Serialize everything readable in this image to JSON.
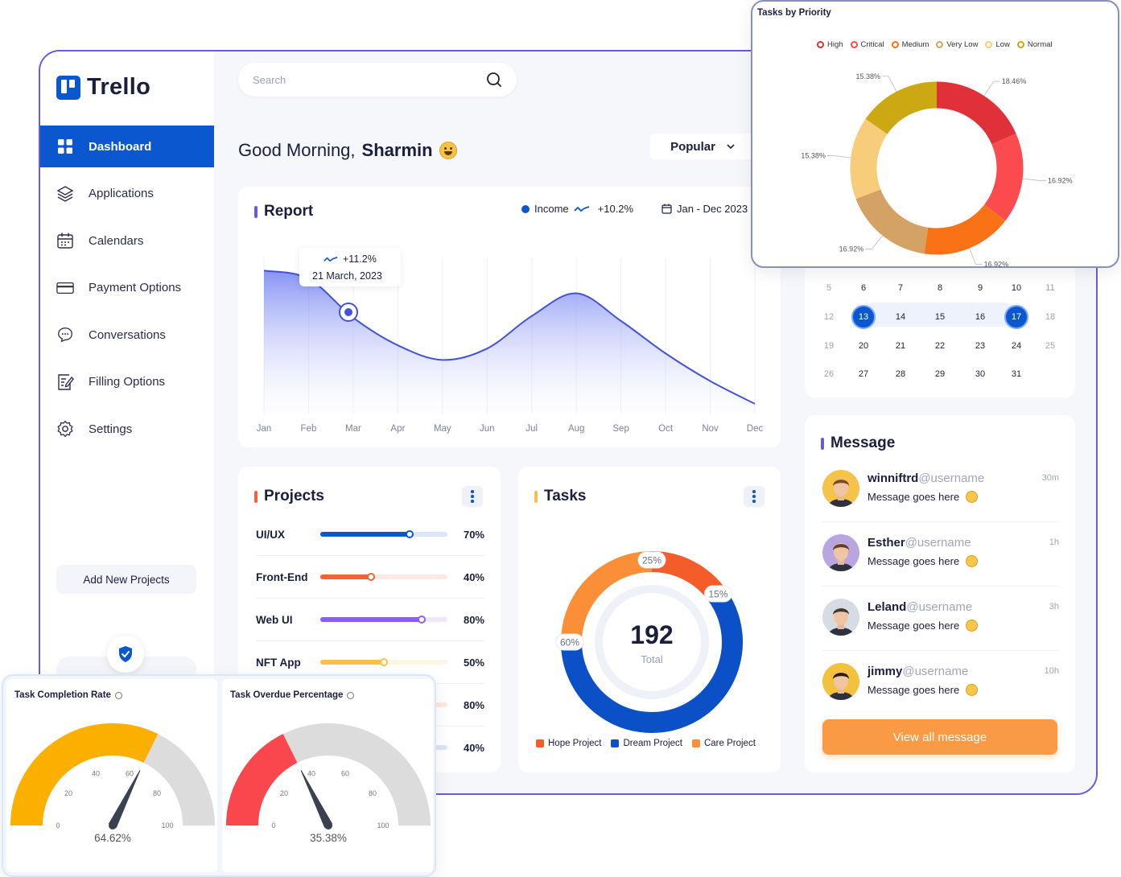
{
  "app": {
    "name": "Trello"
  },
  "sidebar": {
    "items": [
      {
        "label": "Dashboard",
        "icon": "dashboard-grid-icon",
        "active": true
      },
      {
        "label": "Applications",
        "icon": "applications-icon"
      },
      {
        "label": "Calendars",
        "icon": "calendar-icon"
      },
      {
        "label": "Payment Options",
        "icon": "credit-card-icon"
      },
      {
        "label": "Conversations",
        "icon": "chat-icon"
      },
      {
        "label": "Filling Options",
        "icon": "edit-document-icon"
      },
      {
        "label": "Settings",
        "icon": "gear-icon"
      }
    ],
    "add_button": "Add New Projects"
  },
  "search": {
    "placeholder": "Search"
  },
  "greeting": {
    "prefix": "Good Morning,",
    "name": "Sharmin"
  },
  "filter": {
    "selected": "Popular"
  },
  "report": {
    "title": "Report",
    "legend_label": "Income",
    "legend_change": "+10.2%",
    "date_range": "Jan - Dec 2023",
    "tooltip": {
      "change": "+11.2%",
      "date": "21 March, 2023"
    },
    "accent": "#0b57d0"
  },
  "chart_data": {
    "type": "area",
    "x": [
      "Jan",
      "Feb",
      "Mar",
      "Apr",
      "May",
      "Jun",
      "Jul",
      "Aug",
      "Sep",
      "Oct",
      "Nov",
      "Dec"
    ],
    "series": [
      {
        "name": "Income",
        "values": [
          88,
          83,
          59,
          42,
          33,
          40,
          60,
          74,
          57,
          37,
          20,
          6
        ]
      }
    ],
    "highlight_index": 2,
    "xlabel": "",
    "ylabel": "",
    "grid": true,
    "y_axis_shown": false
  },
  "projects": {
    "title": "Projects",
    "rows": [
      {
        "name": "UI/UX",
        "percent": 70,
        "label": "70%",
        "color": "#0b57d0"
      },
      {
        "name": "Front-End",
        "percent": 40,
        "label": "40%",
        "color": "#f4623a"
      },
      {
        "name": "Web UI",
        "percent": 80,
        "label": "80%",
        "color": "#8b5cf6"
      },
      {
        "name": "NFT App",
        "percent": 50,
        "label": "50%",
        "color": "#f7c04a"
      },
      {
        "name": "",
        "percent": 80,
        "label": "80%",
        "color": "#f4623a"
      },
      {
        "name": "",
        "percent": 40,
        "label": "40%",
        "color": "#0b57d0"
      }
    ]
  },
  "tasks": {
    "title": "Tasks",
    "total": "192",
    "total_label": "Total",
    "segments": [
      {
        "name": "Dream Project",
        "percent": 60,
        "label": "60%",
        "color": "#0b50c7"
      },
      {
        "name": "Care Project",
        "percent": 25,
        "label": "25%",
        "color": "#fb8f38"
      },
      {
        "name": "Hope Project",
        "percent": 15,
        "label": "15%",
        "color": "#f45c29"
      }
    ],
    "legend": [
      {
        "name": "Hope Project",
        "color": "#f45c29"
      },
      {
        "name": "Dream Project",
        "color": "#0b50c7"
      },
      {
        "name": "Care Project",
        "color": "#fb8f38"
      }
    ]
  },
  "calendar": {
    "weeks": [
      [
        {
          "d": "5",
          "m": true
        },
        {
          "d": "6"
        },
        {
          "d": "7"
        },
        {
          "d": "8"
        },
        {
          "d": "9"
        },
        {
          "d": "10"
        },
        {
          "d": "11",
          "m": true
        }
      ],
      [
        {
          "d": "12",
          "m": true
        },
        {
          "d": "13",
          "s": true
        },
        {
          "d": "14"
        },
        {
          "d": "15"
        },
        {
          "d": "16"
        },
        {
          "d": "17",
          "s": true
        },
        {
          "d": "18",
          "m": true
        }
      ],
      [
        {
          "d": "19",
          "m": true
        },
        {
          "d": "20"
        },
        {
          "d": "21"
        },
        {
          "d": "22"
        },
        {
          "d": "23"
        },
        {
          "d": "24"
        },
        {
          "d": "25",
          "m": true
        }
      ],
      [
        {
          "d": "26",
          "m": true
        },
        {
          "d": "27"
        },
        {
          "d": "28"
        },
        {
          "d": "29"
        },
        {
          "d": "30"
        },
        {
          "d": "31"
        }
      ]
    ]
  },
  "messages": {
    "title": "Message",
    "items": [
      {
        "name": "winniftrd",
        "handle": "@username",
        "text": "Message goes here",
        "time": "30m"
      },
      {
        "name": "Esther",
        "handle": "@username",
        "text": "Message goes here",
        "time": "1h"
      },
      {
        "name": "Leland",
        "handle": "@username",
        "text": "Message goes here",
        "time": "3h"
      },
      {
        "name": "jimmy",
        "handle": "@username",
        "text": "Message goes here",
        "time": "10h"
      }
    ],
    "view_all": "View all message"
  },
  "priority": {
    "title": "Tasks by Priority",
    "legend": [
      {
        "name": "High",
        "color": "#e0313a"
      },
      {
        "name": "Critical",
        "color": "#fb4b4e"
      },
      {
        "name": "Medium",
        "color": "#f97316"
      },
      {
        "name": "Very Low",
        "color": "#d4a264"
      },
      {
        "name": "Low",
        "color": "#f8cd7a"
      },
      {
        "name": "Normal",
        "color": "#cca812"
      }
    ],
    "slices": [
      {
        "name": "High",
        "label": "18.46%",
        "value": 18.46,
        "color": "#e0313a"
      },
      {
        "name": "Critical",
        "label": "16.92%",
        "value": 16.92,
        "color": "#fb4b4e"
      },
      {
        "name": "Medium",
        "label": "16.92%",
        "value": 16.92,
        "color": "#f97316"
      },
      {
        "name": "Very Low",
        "label": "16.92%",
        "value": 16.92,
        "color": "#d4a264"
      },
      {
        "name": "Low",
        "label": "15.38%",
        "value": 15.38,
        "color": "#f8cd7a"
      },
      {
        "name": "Normal",
        "label": "15.38%",
        "value": 15.38,
        "color": "#cca812"
      }
    ]
  },
  "gauges": [
    {
      "title": "Task Completion Rate",
      "value": 64.62,
      "label": "64.62%",
      "color": "#fbb000",
      "ticks": [
        "0",
        "20",
        "40",
        "60",
        "80",
        "100"
      ]
    },
    {
      "title": "Task Overdue Percentage",
      "value": 35.38,
      "label": "35.38%",
      "color": "#f9474d",
      "ticks": [
        "0",
        "20",
        "40",
        "60",
        "80",
        "100"
      ]
    }
  ]
}
